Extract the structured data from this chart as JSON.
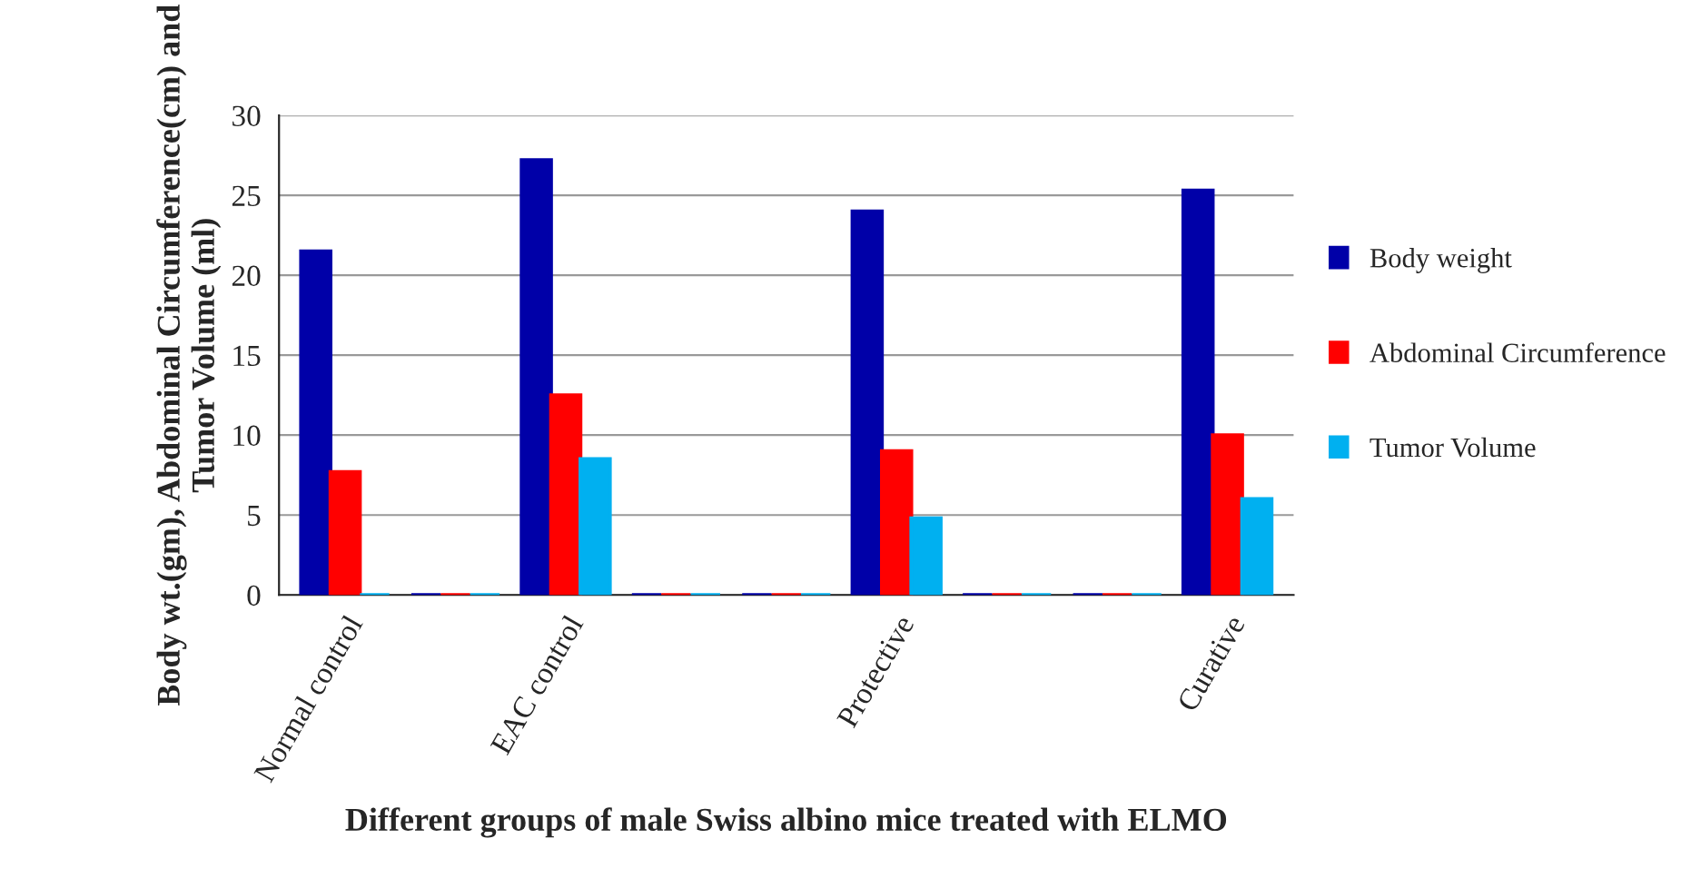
{
  "chart_data": {
    "type": "bar",
    "xlabel": "Different groups of male Swiss albino mice treated with ELMO",
    "ylabel": "Body wt.(gm), Abdominal Circumference(cm) and Tumor Volume (ml)",
    "categories": [
      "Normal control",
      null,
      "EAC control",
      null,
      null,
      "Protective",
      null,
      null,
      "Curative"
    ],
    "series": [
      {
        "name": "Body weight",
        "color": "#0000a8",
        "values": [
          21.5,
          0,
          27.2,
          0,
          0,
          24,
          0,
          0,
          25.3
        ]
      },
      {
        "name": "Abdominal Circumference",
        "color": "#ff0000",
        "values": [
          7.7,
          0,
          12.5,
          0,
          0,
          9,
          0,
          0,
          10
        ]
      },
      {
        "name": "Tumor Volume",
        "color": "#00b0f0",
        "values": [
          0,
          0,
          8.5,
          0,
          0,
          4.8,
          0,
          0,
          6
        ]
      }
    ],
    "ylim": [
      0,
      30
    ],
    "yticks": [
      0,
      5,
      10,
      15,
      20,
      25,
      30
    ],
    "grid": "y",
    "legend": "right"
  }
}
